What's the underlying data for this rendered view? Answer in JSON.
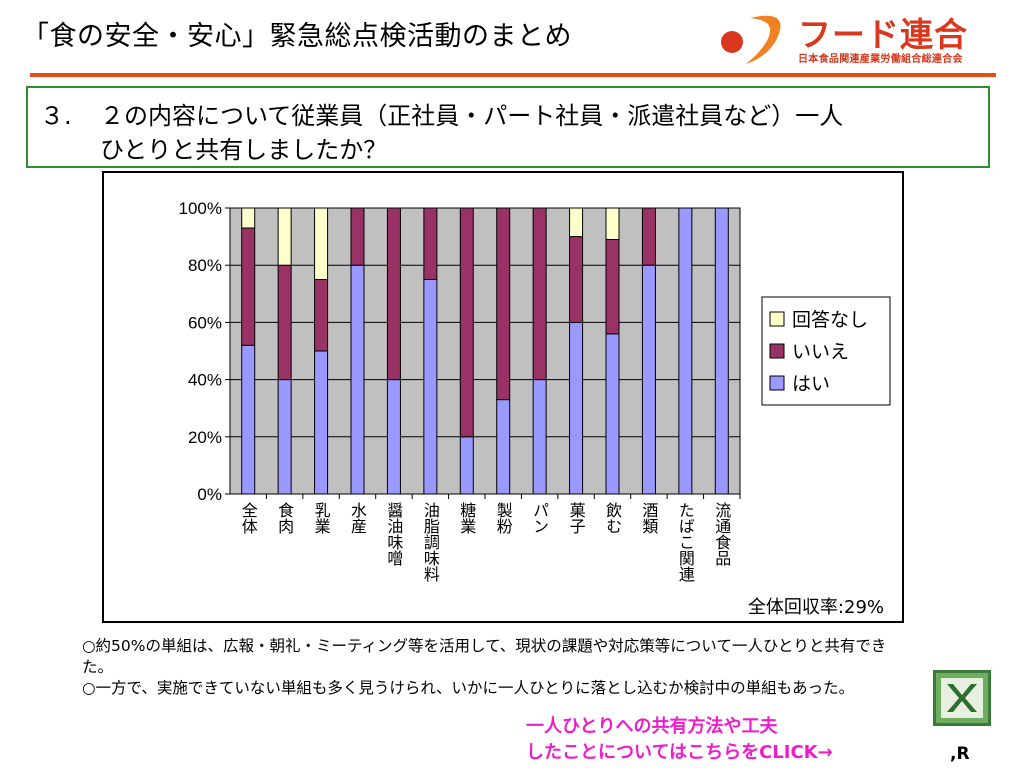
{
  "header": {
    "title": "「食の安全・安心」緊急総点検活動のまとめ",
    "logo_name": "フード連合",
    "logo_sub": "日本食品関連産業労働組合総連合会",
    "logo_icon": "food-rengo-logo-icon",
    "accent_color": "#e64b1e"
  },
  "question": {
    "number": "３.",
    "line1": "２の内容について従業員（正社員・パート社員・派遣社員など）一人",
    "line2": "ひとりと共有しましたか？"
  },
  "chart_data": {
    "type": "bar",
    "stacked": true,
    "categories": [
      "全体",
      "食肉",
      "乳業",
      "水産",
      "醤油味噌",
      "油脂調味料",
      "糖業",
      "製粉",
      "パン",
      "菓子",
      "飲む",
      "酒類",
      "たばこ関連",
      "流通食品"
    ],
    "series": [
      {
        "name": "はい",
        "color": "#9999ff",
        "values": [
          52,
          40,
          50,
          80,
          40,
          75,
          20,
          33,
          40,
          60,
          56,
          80,
          100,
          100
        ]
      },
      {
        "name": "いいえ",
        "color": "#993366",
        "values": [
          41,
          40,
          25,
          20,
          60,
          25,
          80,
          67,
          60,
          30,
          33,
          20,
          0,
          0
        ]
      },
      {
        "name": "回答なし",
        "color": "#ffffcc",
        "values": [
          7,
          20,
          25,
          0,
          0,
          0,
          0,
          0,
          0,
          10,
          11,
          0,
          0,
          0
        ]
      }
    ],
    "y_ticks": [
      "0%",
      "20%",
      "40%",
      "60%",
      "80%",
      "100%"
    ],
    "ylim": [
      0,
      100
    ],
    "grid": true,
    "plot_background": "#c0c0c0",
    "legend_position": "right",
    "legend_order": [
      "回答なし",
      "いいえ",
      "はい"
    ],
    "annotation": "全体回収率:29%"
  },
  "notes": [
    "○約50%の単組は、広報・朝礼・ミーティング等を活用して、現状の課題や対応策等について一人ひとりと共有できた。",
    "○一方で、実施できていない単組も多く見うけられ、いかに一人ひとりに落とし込むか検討中の単組もあった。"
  ],
  "link": {
    "line1": "一人ひとりへの共有方法や工夫",
    "line2": "したことについてはこちらをCLICK→",
    "color": "#ee1ccd"
  },
  "excel_icon": "excel-file-icon",
  "footer_mark": ",R"
}
